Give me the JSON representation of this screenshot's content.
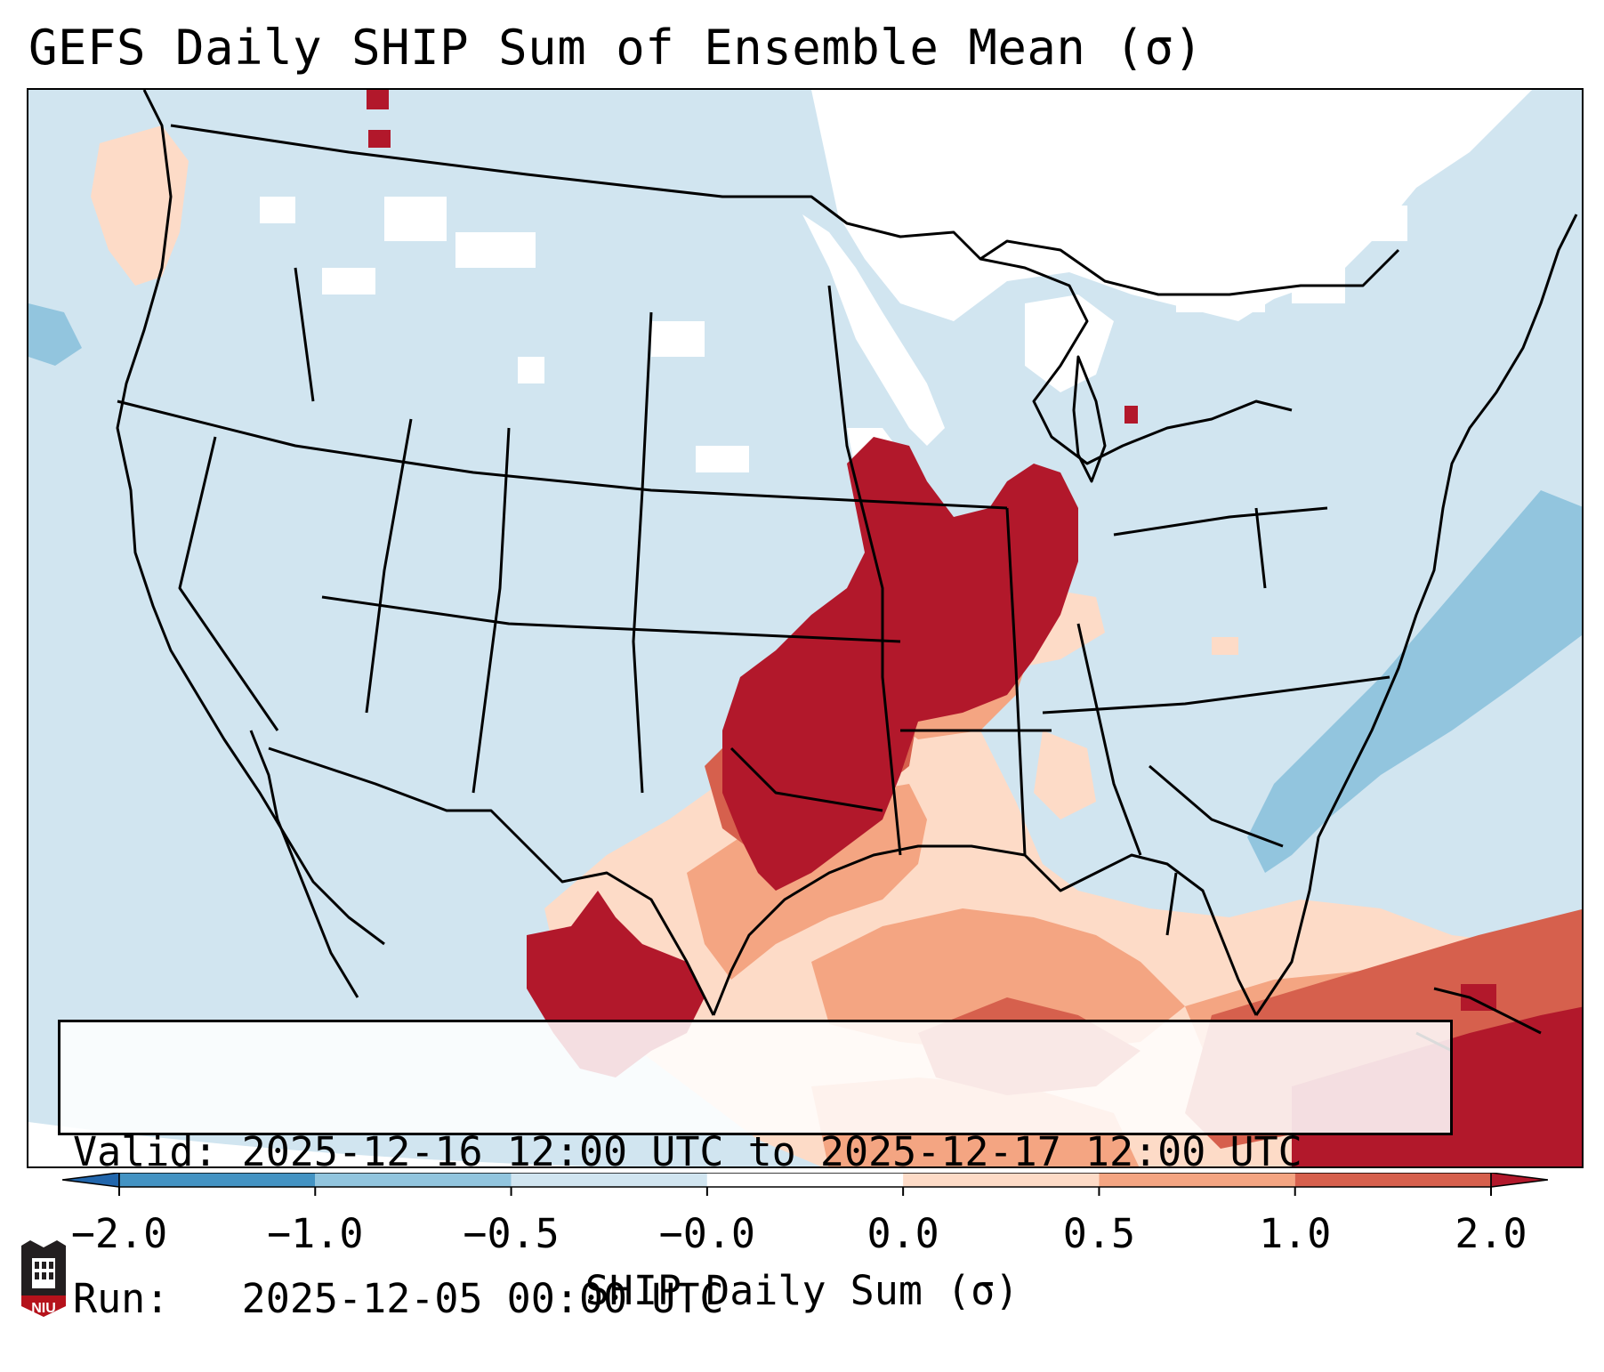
{
  "title": "GEFS Daily SHIP Sum of Ensemble Mean (σ)",
  "info": {
    "valid_label": "Valid:",
    "valid_value": "2025-12-16 12:00 UTC to 2025-12-17 12:00 UTC",
    "run_label": "Run:",
    "run_value": "2025-12-05 00:00 UTC"
  },
  "colorbar": {
    "label": "SHIP Daily Sum (σ)",
    "tick_labels": [
      "−2.0",
      "−1.0",
      "−0.5",
      "−0.0",
      "0.0",
      "0.5",
      "1.0",
      "2.0"
    ],
    "bins": [
      {
        "range": "< -2.0",
        "color": "#2166ac"
      },
      {
        "range": "-2.0 to -1.0",
        "color": "#4393c3"
      },
      {
        "range": "-1.0 to -0.5",
        "color": "#92c5de"
      },
      {
        "range": "-0.5 to -0.0",
        "color": "#d1e5f0"
      },
      {
        "range": "-0.0 to 0.0",
        "color": "#ffffff"
      },
      {
        "range": "0.0 to 0.5",
        "color": "#fddbc7"
      },
      {
        "range": "0.5 to 1.0",
        "color": "#f4a582"
      },
      {
        "range": "1.0 to 2.0",
        "color": "#d6604d"
      },
      {
        "range": "> 2.0",
        "color": "#b2182b"
      }
    ]
  },
  "map": {
    "region": "Contiguous United States, southern Canada, northern Mexico, Gulf of Mexico",
    "highlights": [
      {
        "name": "Southern Plains / Mid-Mississippi Valley",
        "category": "> 2.0"
      },
      {
        "name": "Northern Mexico (Chihuahua / Coahuila)",
        "category": "> 2.0"
      },
      {
        "name": "Gulf of Mexico",
        "category": "0.0 to 1.0"
      },
      {
        "name": "Western Atlantic off the Carolinas",
        "category": "-1.0 to -0.5"
      },
      {
        "name": "Northern Plains / Upper Midwest / Ontario",
        "category": "-0.0 to 0.0"
      }
    ]
  },
  "logo": {
    "text": "NIU",
    "color": "#b5121b"
  }
}
